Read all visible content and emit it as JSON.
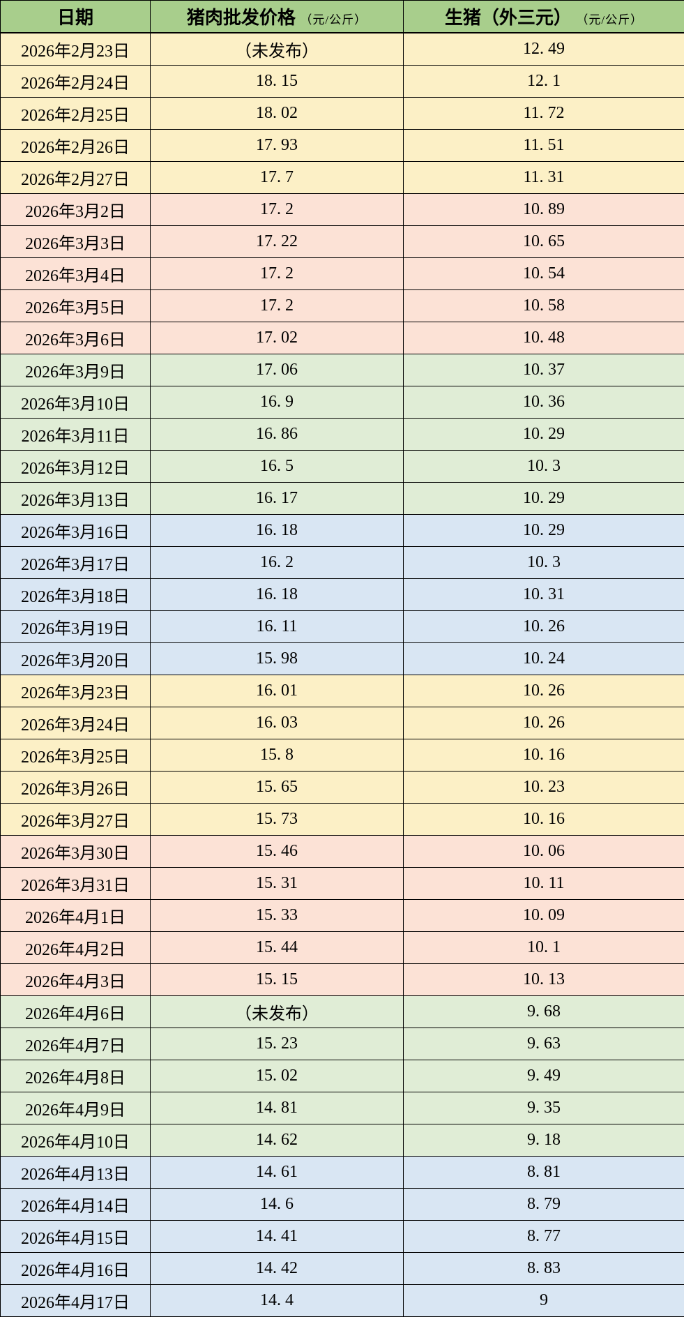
{
  "colors": {
    "header-green": "#A8CE8C",
    "yellow": "#FCF0C6",
    "pink": "#FCE2D6",
    "green": "#E0EDD6",
    "blue": "#D9E6F3",
    "border": "#000000",
    "text": "#000000"
  },
  "table": {
    "headers": {
      "date": "日期",
      "pork": "猪肉批发价格",
      "pork_unit": "（元/公斤）",
      "hog": "生猪（外三元）",
      "hog_unit": "（元/公斤）"
    },
    "rows": [
      {
        "date": "2026年2月23日",
        "pork": "（未发布）",
        "hog": "12. 49",
        "group": "yellow"
      },
      {
        "date": "2026年2月24日",
        "pork": "18. 15",
        "hog": "12. 1",
        "group": "yellow"
      },
      {
        "date": "2026年2月25日",
        "pork": "18. 02",
        "hog": "11. 72",
        "group": "yellow"
      },
      {
        "date": "2026年2月26日",
        "pork": "17. 93",
        "hog": "11. 51",
        "group": "yellow"
      },
      {
        "date": "2026年2月27日",
        "pork": "17. 7",
        "hog": "11. 31",
        "group": "yellow"
      },
      {
        "date": "2026年3月2日",
        "pork": "17. 2",
        "hog": "10. 89",
        "group": "pink"
      },
      {
        "date": "2026年3月3日",
        "pork": "17. 22",
        "hog": "10. 65",
        "group": "pink"
      },
      {
        "date": "2026年3月4日",
        "pork": "17. 2",
        "hog": "10. 54",
        "group": "pink"
      },
      {
        "date": "2026年3月5日",
        "pork": "17. 2",
        "hog": "10. 58",
        "group": "pink"
      },
      {
        "date": "2026年3月6日",
        "pork": "17. 02",
        "hog": "10. 48",
        "group": "pink"
      },
      {
        "date": "2026年3月9日",
        "pork": "17. 06",
        "hog": "10. 37",
        "group": "green"
      },
      {
        "date": "2026年3月10日",
        "pork": "16. 9",
        "hog": "10. 36",
        "group": "green"
      },
      {
        "date": "2026年3月11日",
        "pork": "16. 86",
        "hog": "10. 29",
        "group": "green"
      },
      {
        "date": "2026年3月12日",
        "pork": "16. 5",
        "hog": "10. 3",
        "group": "green"
      },
      {
        "date": "2026年3月13日",
        "pork": "16. 17",
        "hog": "10. 29",
        "group": "green"
      },
      {
        "date": "2026年3月16日",
        "pork": "16. 18",
        "hog": "10. 29",
        "group": "blue"
      },
      {
        "date": "2026年3月17日",
        "pork": "16. 2",
        "hog": "10. 3",
        "group": "blue"
      },
      {
        "date": "2026年3月18日",
        "pork": "16. 18",
        "hog": "10. 31",
        "group": "blue"
      },
      {
        "date": "2026年3月19日",
        "pork": "16. 11",
        "hog": "10. 26",
        "group": "blue"
      },
      {
        "date": "2026年3月20日",
        "pork": "15. 98",
        "hog": "10. 24",
        "group": "blue"
      },
      {
        "date": "2026年3月23日",
        "pork": "16. 01",
        "hog": "10. 26",
        "group": "yellow"
      },
      {
        "date": "2026年3月24日",
        "pork": "16. 03",
        "hog": "10. 26",
        "group": "yellow"
      },
      {
        "date": "2026年3月25日",
        "pork": "15. 8",
        "hog": "10. 16",
        "group": "yellow"
      },
      {
        "date": "2026年3月26日",
        "pork": "15. 65",
        "hog": "10. 23",
        "group": "yellow"
      },
      {
        "date": "2026年3月27日",
        "pork": "15. 73",
        "hog": "10. 16",
        "group": "yellow"
      },
      {
        "date": "2026年3月30日",
        "pork": "15. 46",
        "hog": "10. 06",
        "group": "pink"
      },
      {
        "date": "2026年3月31日",
        "pork": "15. 31",
        "hog": "10. 11",
        "group": "pink"
      },
      {
        "date": "2026年4月1日",
        "pork": "15. 33",
        "hog": "10. 09",
        "group": "pink"
      },
      {
        "date": "2026年4月2日",
        "pork": "15. 44",
        "hog": "10. 1",
        "group": "pink"
      },
      {
        "date": "2026年4月3日",
        "pork": "15. 15",
        "hog": "10. 13",
        "group": "pink"
      },
      {
        "date": "2026年4月6日",
        "pork": "（未发布）",
        "hog": "9. 68",
        "group": "green"
      },
      {
        "date": "2026年4月7日",
        "pork": "15. 23",
        "hog": "9. 63",
        "group": "green"
      },
      {
        "date": "2026年4月8日",
        "pork": "15. 02",
        "hog": "9. 49",
        "group": "green"
      },
      {
        "date": "2026年4月9日",
        "pork": "14. 81",
        "hog": "9. 35",
        "group": "green"
      },
      {
        "date": "2026年4月10日",
        "pork": "14. 62",
        "hog": "9. 18",
        "group": "green"
      },
      {
        "date": "2026年4月13日",
        "pork": "14. 61",
        "hog": "8. 81",
        "group": "blue"
      },
      {
        "date": "2026年4月14日",
        "pork": "14. 6",
        "hog": "8. 79",
        "group": "blue"
      },
      {
        "date": "2026年4月15日",
        "pork": "14. 41",
        "hog": "8. 77",
        "group": "blue"
      },
      {
        "date": "2026年4月16日",
        "pork": "14. 42",
        "hog": "8. 83",
        "group": "blue"
      },
      {
        "date": "2026年4月17日",
        "pork": "14. 4",
        "hog": "9",
        "group": "blue"
      }
    ]
  },
  "chart_data": {
    "type": "table",
    "columns": [
      "日期",
      "猪肉批发价格（元/公斤）",
      "生猪（外三元）（元/公斤）"
    ],
    "rows": [
      [
        "2026年2月23日",
        null,
        12.49
      ],
      [
        "2026年2月24日",
        18.15,
        12.1
      ],
      [
        "2026年2月25日",
        18.02,
        11.72
      ],
      [
        "2026年2月26日",
        17.93,
        11.51
      ],
      [
        "2026年2月27日",
        17.7,
        11.31
      ],
      [
        "2026年3月2日",
        17.2,
        10.89
      ],
      [
        "2026年3月3日",
        17.22,
        10.65
      ],
      [
        "2026年3月4日",
        17.2,
        10.54
      ],
      [
        "2026年3月5日",
        17.2,
        10.58
      ],
      [
        "2026年3月6日",
        17.02,
        10.48
      ],
      [
        "2026年3月9日",
        17.06,
        10.37
      ],
      [
        "2026年3月10日",
        16.9,
        10.36
      ],
      [
        "2026年3月11日",
        16.86,
        10.29
      ],
      [
        "2026年3月12日",
        16.5,
        10.3
      ],
      [
        "2026年3月13日",
        16.17,
        10.29
      ],
      [
        "2026年3月16日",
        16.18,
        10.29
      ],
      [
        "2026年3月17日",
        16.2,
        10.3
      ],
      [
        "2026年3月18日",
        16.18,
        10.31
      ],
      [
        "2026年3月19日",
        16.11,
        10.26
      ],
      [
        "2026年3月20日",
        15.98,
        10.24
      ],
      [
        "2026年3月23日",
        16.01,
        10.26
      ],
      [
        "2026年3月24日",
        16.03,
        10.26
      ],
      [
        "2026年3月25日",
        15.8,
        10.16
      ],
      [
        "2026年3月26日",
        15.65,
        10.23
      ],
      [
        "2026年3月27日",
        15.73,
        10.16
      ],
      [
        "2026年3月30日",
        15.46,
        10.06
      ],
      [
        "2026年3月31日",
        15.31,
        10.11
      ],
      [
        "2026年4月1日",
        15.33,
        10.09
      ],
      [
        "2026年4月2日",
        15.44,
        10.1
      ],
      [
        "2026年4月3日",
        15.15,
        10.13
      ],
      [
        "2026年4月6日",
        null,
        9.68
      ],
      [
        "2026年4月7日",
        15.23,
        9.63
      ],
      [
        "2026年4月8日",
        15.02,
        9.49
      ],
      [
        "2026年4月9日",
        14.81,
        9.35
      ],
      [
        "2026年4月10日",
        14.62,
        9.18
      ],
      [
        "2026年4月13日",
        14.61,
        8.81
      ],
      [
        "2026年4月14日",
        14.6,
        8.79
      ],
      [
        "2026年4月15日",
        14.41,
        8.77
      ],
      [
        "2026年4月16日",
        14.42,
        8.83
      ],
      [
        "2026年4月17日",
        14.4,
        9
      ]
    ],
    "notes": "null price means cell shows （未发布） (not published); weekly row groups tinted yellow/pink/green/blue"
  }
}
